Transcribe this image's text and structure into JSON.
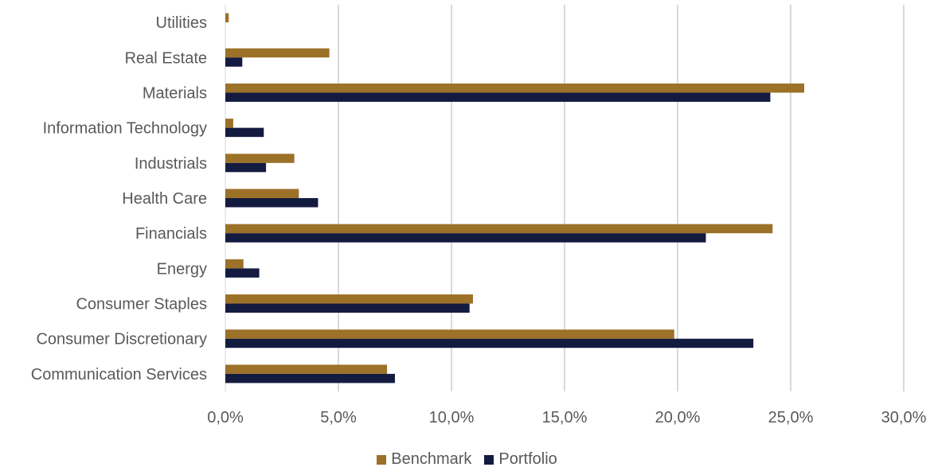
{
  "chart_data": {
    "type": "bar",
    "orientation": "horizontal",
    "categories": [
      "Utilities",
      "Real Estate",
      "Materials",
      "Information Technology",
      "Industrials",
      "Health Care",
      "Financials",
      "Energy",
      "Consumer Staples",
      "Consumer Discretionary",
      "Communication Services"
    ],
    "series": [
      {
        "name": "Benchmark",
        "color": "#9c7128",
        "values": [
          0.15,
          4.6,
          25.6,
          0.35,
          3.05,
          3.25,
          24.2,
          0.8,
          10.95,
          19.85,
          7.15
        ]
      },
      {
        "name": "Portfolio",
        "color": "#141b40",
        "values": [
          0.0,
          0.75,
          24.1,
          1.7,
          1.8,
          4.1,
          21.25,
          1.5,
          10.8,
          23.35,
          7.5
        ]
      }
    ],
    "x_ticks": [
      "0,0%",
      "5,0%",
      "10,0%",
      "15,0%",
      "20,0%",
      "25,0%",
      "30,0%"
    ],
    "xlim": [
      0,
      30
    ],
    "grid": "vertical",
    "legend_position": "bottom",
    "title": "",
    "xlabel": "",
    "ylabel": ""
  },
  "legend": {
    "items": [
      {
        "label": "Benchmark",
        "color": "#9c7128"
      },
      {
        "label": "Portfolio",
        "color": "#141b40"
      }
    ]
  }
}
